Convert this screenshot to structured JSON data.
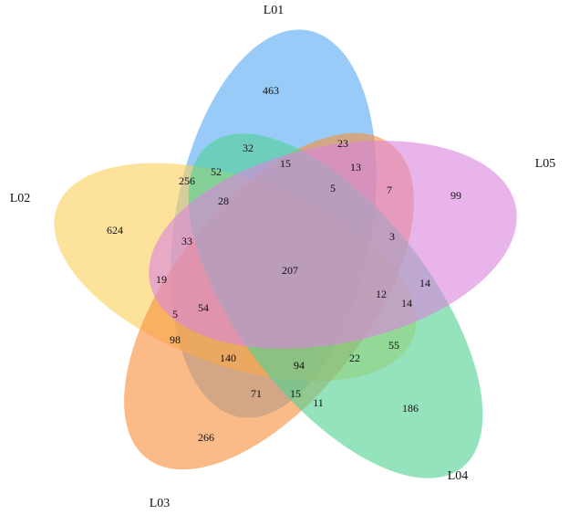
{
  "venn": {
    "sets": [
      {
        "name": "L01",
        "color": "#5aabf5"
      },
      {
        "name": "L02",
        "color": "#fcd060"
      },
      {
        "name": "L03",
        "color": "#f7923f"
      },
      {
        "name": "L04",
        "color": "#52d294"
      },
      {
        "name": "L05",
        "color": "#da86dc"
      }
    ],
    "regions": [
      463,
      32,
      23,
      15,
      13,
      52,
      256,
      5,
      7,
      99,
      624,
      28,
      33,
      3,
      207,
      19,
      14,
      12,
      14,
      5,
      54,
      98,
      55,
      140,
      22,
      94,
      71,
      15,
      11,
      186,
      266
    ]
  }
}
